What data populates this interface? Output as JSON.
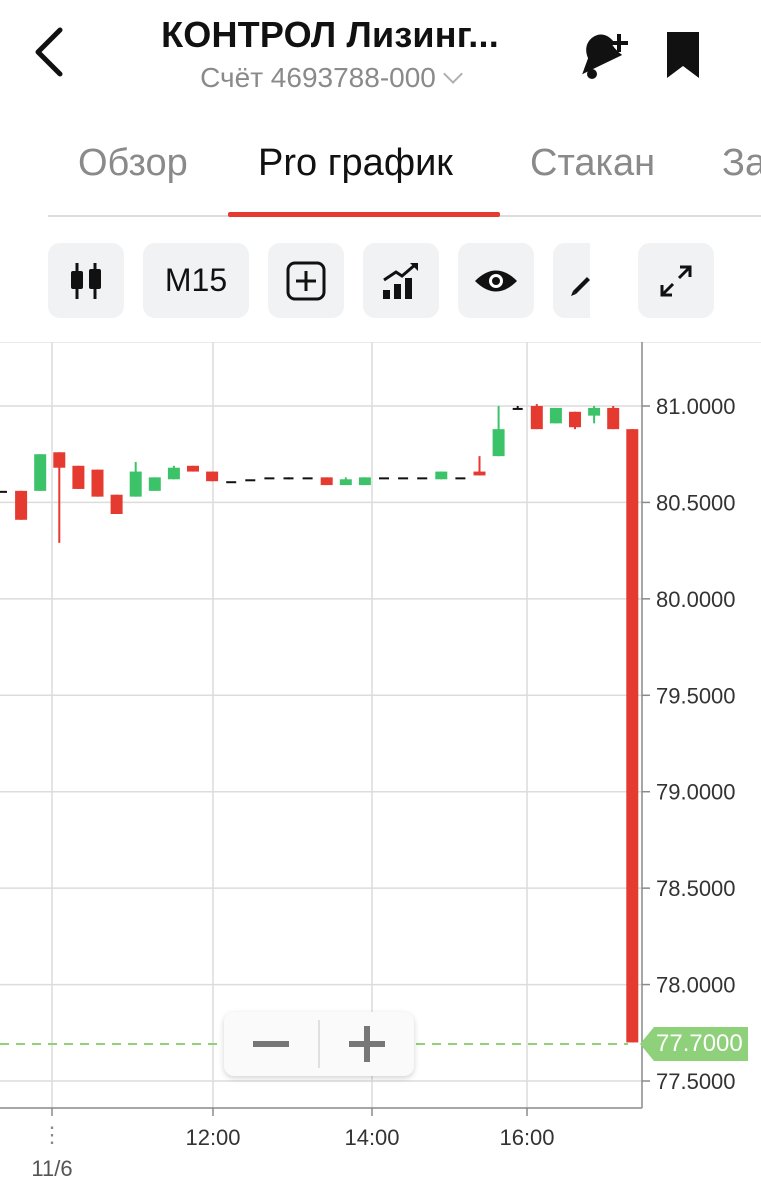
{
  "header": {
    "title": "КОНТРОЛ Лизинг...",
    "account": "Счёт 4693788-000"
  },
  "tabs": [
    {
      "label": "Обзор",
      "active": false
    },
    {
      "label": "Pro график",
      "active": true
    },
    {
      "label": "Стакан",
      "active": false
    },
    {
      "label": "За",
      "active": false
    }
  ],
  "toolbar": {
    "timeframe": "M15",
    "icons": [
      "candles-icon",
      "add-indicator-icon",
      "chart-growth-icon",
      "eye-icon",
      "pencil-icon",
      "expand-icon"
    ]
  },
  "chart_data": {
    "type": "candlestick",
    "y_ticks": [
      "81.0000",
      "80.5000",
      "80.0000",
      "79.5000",
      "79.0000",
      "78.5000",
      "78.0000",
      "77.5000"
    ],
    "x_ticks": [
      "12:00",
      "14:00",
      "16:00"
    ],
    "date_label": "11/6",
    "last_price": "77.7000",
    "ylim": [
      77.4,
      81.3
    ],
    "colors": {
      "up": "#3cc36a",
      "down": "#e53a2f",
      "badge": "#8fd07a"
    },
    "candles": [
      {
        "x": 0.0,
        "o": 80.56,
        "h": 80.56,
        "l": 80.56,
        "c": 80.56
      },
      {
        "x": 0.25,
        "o": 80.56,
        "h": 80.56,
        "l": 80.41,
        "c": 80.41
      },
      {
        "x": 0.5,
        "o": 80.56,
        "h": 80.75,
        "l": 80.56,
        "c": 80.75
      },
      {
        "x": 0.75,
        "o": 80.76,
        "h": 80.76,
        "l": 80.29,
        "c": 80.68
      },
      {
        "x": 1.0,
        "o": 80.69,
        "h": 80.69,
        "l": 80.57,
        "c": 80.57
      },
      {
        "x": 1.25,
        "o": 80.67,
        "h": 80.67,
        "l": 80.53,
        "c": 80.53
      },
      {
        "x": 1.5,
        "o": 80.54,
        "h": 80.54,
        "l": 80.44,
        "c": 80.44
      },
      {
        "x": 1.75,
        "o": 80.53,
        "h": 80.71,
        "l": 80.53,
        "c": 80.66
      },
      {
        "x": 2.0,
        "o": 80.56,
        "h": 80.63,
        "l": 80.56,
        "c": 80.63
      },
      {
        "x": 2.25,
        "o": 80.62,
        "h": 80.69,
        "l": 80.62,
        "c": 80.68
      },
      {
        "x": 2.5,
        "o": 80.69,
        "h": 80.69,
        "l": 80.66,
        "c": 80.66
      },
      {
        "x": 2.75,
        "o": 80.66,
        "h": 80.66,
        "l": 80.61,
        "c": 80.61
      },
      {
        "x": 3.0,
        "o": 80.61,
        "h": 80.61,
        "l": 80.61,
        "c": 80.61
      },
      {
        "x": 3.25,
        "o": 80.62,
        "h": 80.62,
        "l": 80.62,
        "c": 80.62
      },
      {
        "x": 3.5,
        "o": 80.63,
        "h": 80.63,
        "l": 80.63,
        "c": 80.63
      },
      {
        "x": 3.75,
        "o": 80.63,
        "h": 80.63,
        "l": 80.62,
        "c": 80.62
      },
      {
        "x": 4.0,
        "o": 80.63,
        "h": 80.63,
        "l": 80.63,
        "c": 80.63
      },
      {
        "x": 4.25,
        "o": 80.63,
        "h": 80.63,
        "l": 80.59,
        "c": 80.59
      },
      {
        "x": 4.5,
        "o": 80.59,
        "h": 80.63,
        "l": 80.59,
        "c": 80.62
      },
      {
        "x": 4.75,
        "o": 80.59,
        "h": 80.63,
        "l": 80.59,
        "c": 80.63
      },
      {
        "x": 5.0,
        "o": 80.63,
        "h": 80.63,
        "l": 80.63,
        "c": 80.63
      },
      {
        "x": 5.25,
        "o": 80.63,
        "h": 80.63,
        "l": 80.63,
        "c": 80.63
      },
      {
        "x": 5.5,
        "o": 80.63,
        "h": 80.63,
        "l": 80.63,
        "c": 80.63
      },
      {
        "x": 5.75,
        "o": 80.62,
        "h": 80.66,
        "l": 80.62,
        "c": 80.66
      },
      {
        "x": 6.0,
        "o": 80.63,
        "h": 80.63,
        "l": 80.63,
        "c": 80.63
      },
      {
        "x": 6.25,
        "o": 80.66,
        "h": 80.74,
        "l": 80.64,
        "c": 80.64
      },
      {
        "x": 6.5,
        "o": 80.74,
        "h": 81.0,
        "l": 80.74,
        "c": 80.88
      },
      {
        "x": 6.75,
        "o": 80.99,
        "h": 81.0,
        "l": 80.99,
        "c": 80.99
      },
      {
        "x": 7.0,
        "o": 81.0,
        "h": 81.01,
        "l": 80.88,
        "c": 80.88
      },
      {
        "x": 7.25,
        "o": 80.91,
        "h": 80.99,
        "l": 80.91,
        "c": 80.99
      },
      {
        "x": 7.5,
        "o": 80.97,
        "h": 80.97,
        "l": 80.88,
        "c": 80.89
      },
      {
        "x": 7.75,
        "o": 80.95,
        "h": 81.0,
        "l": 80.91,
        "c": 80.99
      },
      {
        "x": 8.0,
        "o": 80.99,
        "h": 81.0,
        "l": 80.88,
        "c": 80.88
      },
      {
        "x": 8.25,
        "o": 80.88,
        "h": 80.88,
        "l": 77.7,
        "c": 77.7
      }
    ]
  }
}
